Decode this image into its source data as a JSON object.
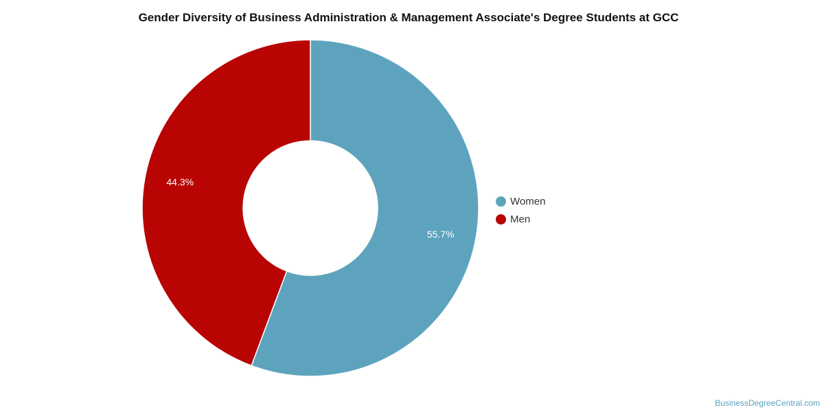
{
  "chart_data": {
    "type": "pie",
    "style": "donut",
    "title": "Gender Diversity of Business Administration & Management Associate's Degree Students at GCC",
    "series": [
      {
        "name": "Women",
        "value": 55.7,
        "label": "55.7%",
        "color": "#5ea3be"
      },
      {
        "name": "Men",
        "value": 44.3,
        "label": "44.3%",
        "color": "#b90404"
      }
    ],
    "legend": "right"
  },
  "footer": {
    "watermark": "BusinessDegreeCentral.com"
  }
}
